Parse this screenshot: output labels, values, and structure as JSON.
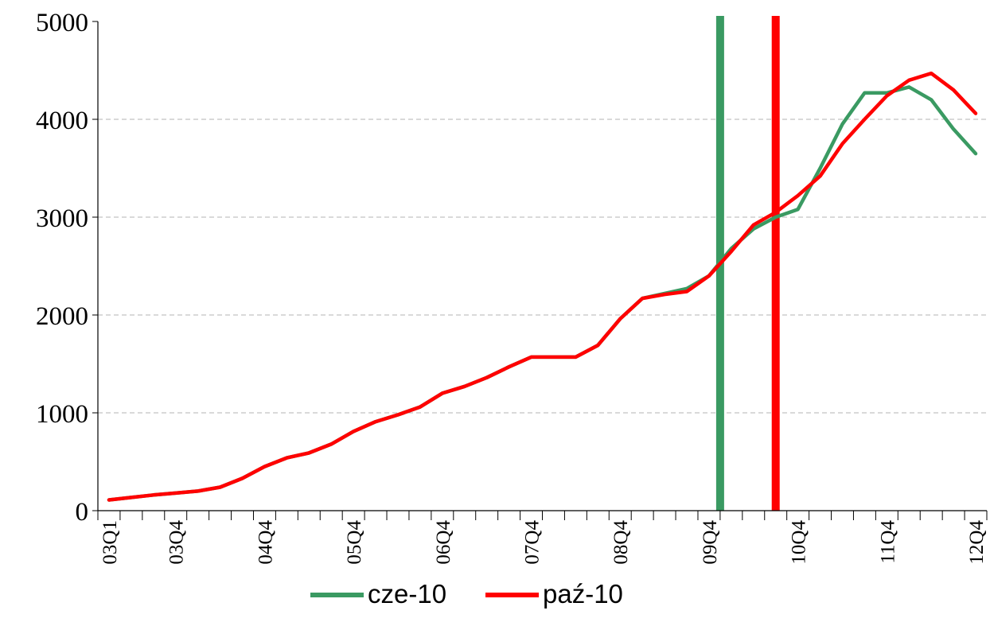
{
  "chart_data": {
    "type": "line",
    "title": "",
    "xlabel": "",
    "ylabel": "",
    "ylim": [
      0,
      5000
    ],
    "y_ticks": [
      "0",
      "1000",
      "2000",
      "3000",
      "4000",
      "5000"
    ],
    "grid": "horizontal dashed",
    "legend_position": "bottom",
    "x": [
      "03Q1",
      "03Q2",
      "03Q3",
      "03Q4",
      "04Q1",
      "04Q2",
      "04Q3",
      "04Q4",
      "05Q1",
      "05Q2",
      "05Q3",
      "05Q4",
      "06Q1",
      "06Q2",
      "06Q3",
      "06Q4",
      "07Q1",
      "07Q2",
      "07Q3",
      "07Q4",
      "08Q1",
      "08Q2",
      "08Q3",
      "08Q4",
      "09Q1",
      "09Q2",
      "09Q3",
      "09Q4",
      "10Q1",
      "10Q2",
      "10Q3",
      "10Q4",
      "11Q1",
      "11Q2",
      "11Q3",
      "11Q4",
      "12Q1",
      "12Q2",
      "12Q3",
      "12Q4"
    ],
    "x_tick_labels": [
      "03Q1",
      "03Q4",
      "04Q4",
      "05Q4",
      "06Q4",
      "07Q4",
      "08Q4",
      "09Q4",
      "10Q4",
      "11Q4",
      "12Q4"
    ],
    "series": [
      {
        "name": "cze-10",
        "color": "#3A9A62",
        "values": [
          110,
          135,
          160,
          180,
          200,
          240,
          330,
          450,
          540,
          590,
          680,
          810,
          910,
          980,
          1060,
          1200,
          1270,
          1360,
          1470,
          1570,
          1570,
          1570,
          1690,
          1960,
          2170,
          2220,
          2270,
          2400,
          2680,
          2880,
          3000,
          3080,
          3500,
          3950,
          4270,
          4270,
          4330,
          4200,
          3900,
          3650
        ]
      },
      {
        "name": "paź-10",
        "color": "#FF0000",
        "values": [
          110,
          135,
          160,
          180,
          200,
          240,
          330,
          450,
          540,
          590,
          680,
          810,
          910,
          980,
          1060,
          1200,
          1270,
          1360,
          1470,
          1570,
          1570,
          1570,
          1690,
          1960,
          2170,
          2210,
          2240,
          2400,
          2650,
          2920,
          3050,
          3220,
          3420,
          3750,
          4000,
          4240,
          4400,
          4470,
          4300,
          4060
        ]
      }
    ],
    "vertical_markers": [
      {
        "color": "#3A9A62",
        "x": "09Q4/10Q1"
      },
      {
        "color": "#FF0000",
        "x": "10Q3"
      }
    ],
    "legend": [
      {
        "label": "cze-10",
        "color": "#3A9A62"
      },
      {
        "label": "paź-10",
        "color": "#FF0000"
      }
    ]
  }
}
